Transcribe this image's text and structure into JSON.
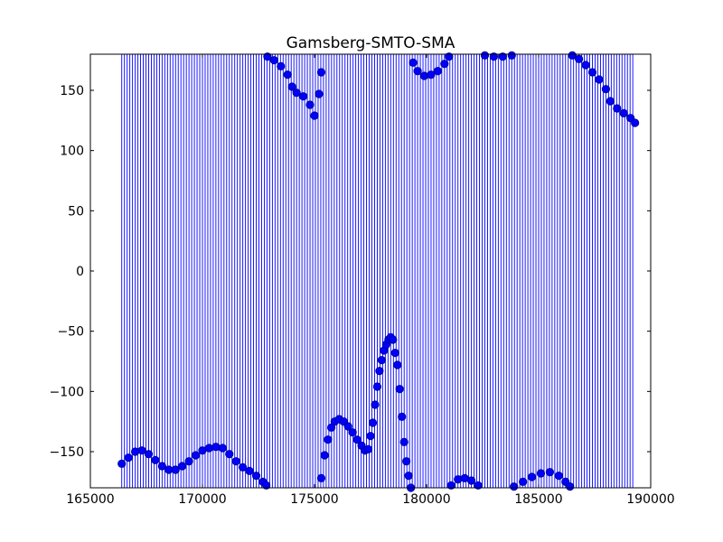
{
  "chart_data": {
    "type": "scatter",
    "title": "Gamsberg-SMTO-SMA",
    "xlabel": "",
    "ylabel": "",
    "xlim": [
      165000,
      190000
    ],
    "ylim": [
      -180,
      180
    ],
    "grid": false,
    "x_ticks": [
      165000,
      170000,
      175000,
      180000,
      185000,
      190000
    ],
    "x_tick_labels": [
      "165000",
      "170000",
      "175000",
      "180000",
      "185000",
      "190000"
    ],
    "y_ticks": [
      150,
      100,
      50,
      0,
      -50,
      -100,
      -150
    ],
    "y_tick_labels": [
      "150",
      "100",
      "50",
      "0",
      "−50",
      "−100",
      "−150"
    ],
    "colors": {
      "points": "#0000ff",
      "point_edge": "#000080",
      "lines": "#0000ff",
      "axes": "#000000"
    },
    "vertical_lines": {
      "x_start": 166400,
      "x_end": 189300,
      "step": 120,
      "y_from": -180,
      "y_to": 180
    },
    "series": [
      {
        "values_xy": [
          [
            166400,
            -160
          ],
          [
            166700,
            -155
          ],
          [
            167000,
            -150
          ],
          [
            167300,
            -149
          ],
          [
            167600,
            -152
          ],
          [
            167900,
            -157
          ],
          [
            168200,
            -162
          ],
          [
            168500,
            -165
          ],
          [
            168800,
            -165
          ],
          [
            169100,
            -162
          ],
          [
            169400,
            -158
          ],
          [
            169700,
            -153
          ],
          [
            170000,
            -149
          ],
          [
            170300,
            -147
          ],
          [
            170600,
            -146
          ],
          [
            170900,
            -147
          ],
          [
            171200,
            -152
          ],
          [
            171500,
            -158
          ],
          [
            171800,
            -163
          ],
          [
            172100,
            -166
          ],
          [
            172400,
            -170
          ],
          [
            172700,
            -175
          ],
          [
            172850,
            -178
          ],
          [
            172900,
            178
          ],
          [
            173200,
            175
          ],
          [
            173500,
            170
          ],
          [
            173800,
            163
          ],
          [
            174000,
            153
          ],
          [
            174200,
            148
          ],
          [
            174500,
            145
          ],
          [
            174800,
            138
          ],
          [
            175000,
            129
          ],
          [
            175200,
            147
          ],
          [
            175300,
            165
          ],
          [
            175300,
            -172
          ],
          [
            175450,
            -153
          ],
          [
            175600,
            -140
          ],
          [
            175750,
            -130
          ],
          [
            175900,
            -125
          ],
          [
            176100,
            -123
          ],
          [
            176300,
            -125
          ],
          [
            176500,
            -129
          ],
          [
            176700,
            -134
          ],
          [
            176900,
            -140
          ],
          [
            177100,
            -145
          ],
          [
            177250,
            -149
          ],
          [
            177400,
            -148
          ],
          [
            177500,
            -137
          ],
          [
            177600,
            -126
          ],
          [
            177700,
            -111
          ],
          [
            177800,
            -96
          ],
          [
            177900,
            -83
          ],
          [
            178000,
            -74
          ],
          [
            178100,
            -66
          ],
          [
            178200,
            -61
          ],
          [
            178300,
            -57
          ],
          [
            178400,
            -55
          ],
          [
            178500,
            -57
          ],
          [
            178600,
            -68
          ],
          [
            178700,
            -78
          ],
          [
            178800,
            -98
          ],
          [
            178900,
            -121
          ],
          [
            179000,
            -142
          ],
          [
            179100,
            -158
          ],
          [
            179200,
            -170
          ],
          [
            179300,
            -180
          ],
          [
            179400,
            173
          ],
          [
            179600,
            166
          ],
          [
            179900,
            162
          ],
          [
            180200,
            163
          ],
          [
            180500,
            166
          ],
          [
            180800,
            172
          ],
          [
            181000,
            178
          ],
          [
            181100,
            -178
          ],
          [
            181400,
            -173
          ],
          [
            181700,
            -172
          ],
          [
            182000,
            -174
          ],
          [
            182300,
            -178
          ],
          [
            182600,
            179
          ],
          [
            183000,
            178
          ],
          [
            183400,
            178
          ],
          [
            183800,
            179
          ],
          [
            183900,
            -179
          ],
          [
            184300,
            -175
          ],
          [
            184700,
            -171
          ],
          [
            185100,
            -168
          ],
          [
            185500,
            -167
          ],
          [
            185900,
            -170
          ],
          [
            186200,
            -175
          ],
          [
            186400,
            -179
          ],
          [
            186500,
            179
          ],
          [
            186800,
            176
          ],
          [
            187100,
            171
          ],
          [
            187400,
            165
          ],
          [
            187700,
            159
          ],
          [
            188000,
            151
          ],
          [
            188200,
            141
          ],
          [
            188500,
            135
          ],
          [
            188800,
            131
          ],
          [
            189100,
            127
          ],
          [
            189300,
            123
          ]
        ]
      }
    ]
  }
}
